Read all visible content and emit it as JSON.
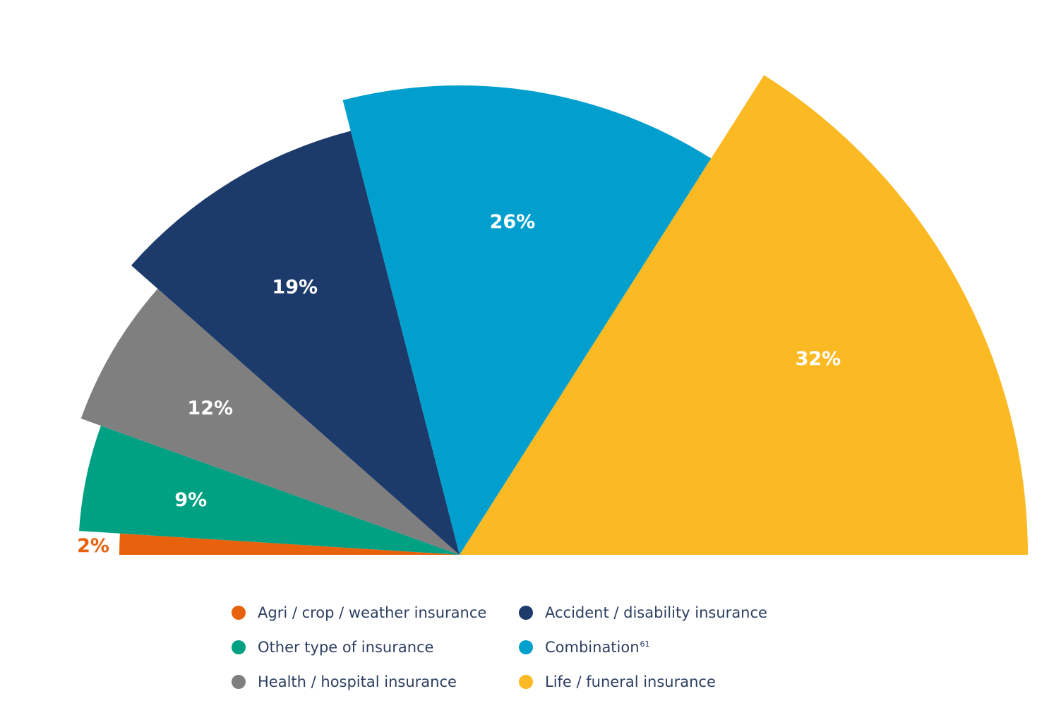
{
  "chart_data": {
    "type": "pie",
    "variant": "semicircle rose (slice radius proportional to value)",
    "slices": [
      {
        "label": "Agri / crop / weather insurance",
        "value": 2,
        "display": "2%",
        "color": "#e8620d",
        "label_color": "#e8620d"
      },
      {
        "label": "Other type of insurance",
        "value": 9,
        "display": "9%",
        "color": "#00a082",
        "label_color": "#ffffff"
      },
      {
        "label": "Health / hospital insurance",
        "value": 12,
        "display": "12%",
        "color": "#7f7f7f",
        "label_color": "#ffffff"
      },
      {
        "label": "Accident / disability insurance",
        "value": 19,
        "display": "19%",
        "color": "#1c3b6b",
        "label_color": "#ffffff"
      },
      {
        "label": "Combination",
        "value": 26,
        "display": "26%",
        "color": "#009fcd",
        "label_color": "#ffffff"
      },
      {
        "label": "Life / funeral insurance",
        "value": 32,
        "display": "32%",
        "color": "#fbb923",
        "label_color": "#ffffff"
      }
    ],
    "legend_position": "bottom"
  },
  "legend": {
    "items": [
      {
        "label": "Agri / crop / weather insurance",
        "color": "#e8620d",
        "sup": ""
      },
      {
        "label": "Other type of insurance",
        "color": "#00a082",
        "sup": ""
      },
      {
        "label": "Health / hospital insurance",
        "color": "#7f7f7f",
        "sup": ""
      },
      {
        "label": "Accident / disability insurance",
        "color": "#1c3b6b",
        "sup": ""
      },
      {
        "label": "Combination",
        "color": "#009fcd",
        "sup": "61"
      },
      {
        "label": "Life / funeral insurance",
        "color": "#fbb923",
        "sup": ""
      }
    ]
  }
}
